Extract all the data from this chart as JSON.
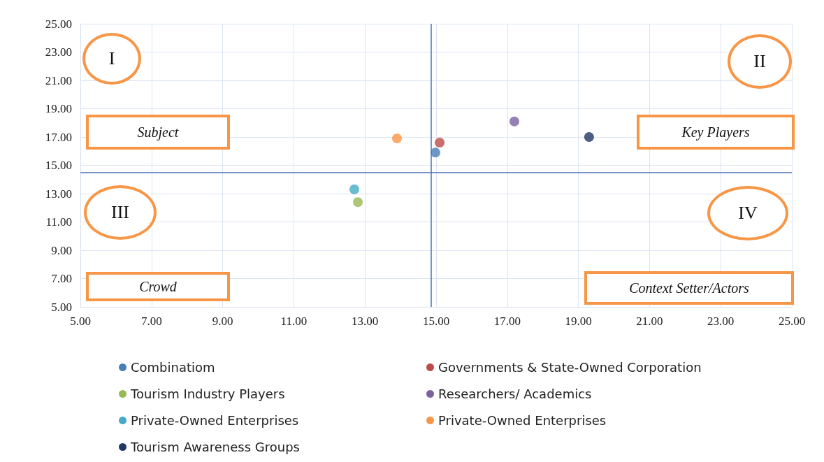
{
  "chart_data": {
    "type": "scatter",
    "xlim": [
      5,
      25
    ],
    "xticks": [
      {
        "value": 5,
        "label": "5.00"
      },
      {
        "value": 7,
        "label": "7.00"
      },
      {
        "value": 9,
        "label": "9.00"
      },
      {
        "value": 11,
        "label": "11.00"
      },
      {
        "value": 13,
        "label": "13.00"
      },
      {
        "value": 15,
        "label": "15.00"
      },
      {
        "value": 17,
        "label": "17.00"
      },
      {
        "value": 19,
        "label": "19.00"
      },
      {
        "value": 21,
        "label": "21.00"
      },
      {
        "value": 23,
        "label": "23.00"
      },
      {
        "value": 25,
        "label": "25.00"
      }
    ],
    "ylim": [
      5,
      25
    ],
    "yticks": [
      {
        "value": 5,
        "label": "5.00"
      },
      {
        "value": 7,
        "label": "7.00"
      },
      {
        "value": 9,
        "label": "9.00"
      },
      {
        "value": 11,
        "label": "11.00"
      },
      {
        "value": 13,
        "label": "13.00"
      },
      {
        "value": 15,
        "label": "15.00"
      },
      {
        "value": 17,
        "label": "17.00"
      },
      {
        "value": 19,
        "label": "19.00"
      },
      {
        "value": 21,
        "label": "21.00"
      },
      {
        "value": 23,
        "label": "23.00"
      },
      {
        "value": 25,
        "label": "25.00"
      }
    ],
    "grid": true,
    "legend": "bottom",
    "marker": "circle",
    "series": [
      {
        "name": "Combinatiom",
        "color": "#4a7ebb",
        "x": [
          14.98
        ],
        "values": [
          15.9
        ]
      },
      {
        "name": "Governments & State-Owned Corporation",
        "color": "#be4b48",
        "x": [
          15.1
        ],
        "values": [
          16.6
        ]
      },
      {
        "name": "Tourism Industry Players",
        "color": "#98b954",
        "x": [
          12.8
        ],
        "values": [
          12.4
        ]
      },
      {
        "name": "Researchers/ Academics",
        "color": "#7d60a0",
        "x": [
          17.2
        ],
        "values": [
          18.1
        ]
      },
      {
        "name": "Private-Owned Enterprises",
        "color": "#46aac5",
        "x": [
          12.7
        ],
        "values": [
          13.3
        ]
      },
      {
        "name": "Private-Owned Enterprises",
        "color": "#f79646",
        "x": [
          13.9
        ],
        "values": [
          16.9
        ]
      },
      {
        "name": "Tourism Awareness Groups",
        "color": "#203864",
        "x": [
          19.3
        ],
        "values": [
          17.0
        ]
      }
    ],
    "ref_lines": [
      {
        "axis": "x",
        "value": 14.85,
        "color": "#4a72b0"
      },
      {
        "axis": "y",
        "value": 14.5,
        "color": "#4a72b0"
      }
    ],
    "annotations": [
      "I",
      "II",
      "III",
      "IV",
      "Subject",
      "Key Players",
      "Crowd",
      "Context Setter/Actors"
    ]
  }
}
